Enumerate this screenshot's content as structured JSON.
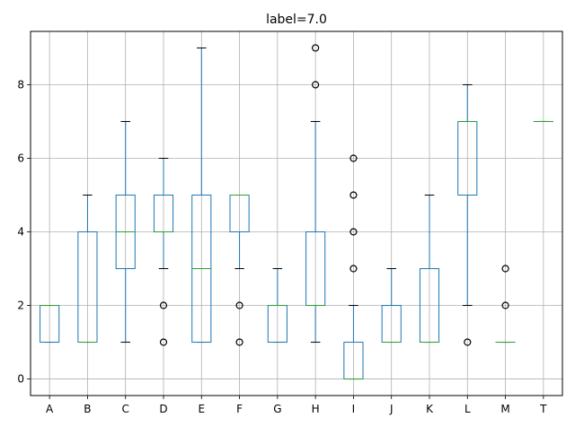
{
  "chart_data": {
    "type": "boxplot",
    "title": "label=7.0",
    "xlabel": "",
    "ylabel": "",
    "ylim": [
      -0.45,
      9.45
    ],
    "yticks": [
      0,
      2,
      4,
      6,
      8
    ],
    "grid": true,
    "colors": {
      "box": "#1f77b4",
      "median": "#2ca02c",
      "whisker": "#1f77b4",
      "cap": "#000000",
      "flier": "#000000",
      "grid": "#b0b0b0"
    },
    "categories": [
      "A",
      "B",
      "C",
      "D",
      "E",
      "F",
      "G",
      "H",
      "I",
      "J",
      "K",
      "L",
      "M",
      "T"
    ],
    "boxes": [
      {
        "name": "A",
        "whislo": 1,
        "q1": 1,
        "med": 2,
        "q3": 2,
        "whishi": 2,
        "fliers": []
      },
      {
        "name": "B",
        "whislo": 1,
        "q1": 1,
        "med": 1,
        "q3": 4,
        "whishi": 5,
        "fliers": []
      },
      {
        "name": "C",
        "whislo": 1,
        "q1": 3,
        "med": 4,
        "q3": 5,
        "whishi": 7,
        "fliers": []
      },
      {
        "name": "D",
        "whislo": 3,
        "q1": 4,
        "med": 4,
        "q3": 5,
        "whishi": 6,
        "fliers": [
          1,
          2
        ]
      },
      {
        "name": "E",
        "whislo": 1,
        "q1": 1,
        "med": 3,
        "q3": 5,
        "whishi": 9,
        "fliers": []
      },
      {
        "name": "F",
        "whislo": 3,
        "q1": 4,
        "med": 5,
        "q3": 5,
        "whishi": 5,
        "fliers": [
          1,
          2
        ]
      },
      {
        "name": "G",
        "whislo": 1,
        "q1": 1,
        "med": 2,
        "q3": 2,
        "whishi": 3,
        "fliers": []
      },
      {
        "name": "H",
        "whislo": 1,
        "q1": 2,
        "med": 2,
        "q3": 4,
        "whishi": 7,
        "fliers": [
          8,
          9
        ]
      },
      {
        "name": "I",
        "whislo": 0,
        "q1": 0,
        "med": 0,
        "q3": 1,
        "whishi": 2,
        "fliers": [
          3,
          4,
          5,
          6
        ]
      },
      {
        "name": "J",
        "whislo": 1,
        "q1": 1,
        "med": 1,
        "q3": 2,
        "whishi": 3,
        "fliers": []
      },
      {
        "name": "K",
        "whislo": 1,
        "q1": 1,
        "med": 1,
        "q3": 3,
        "whishi": 5,
        "fliers": []
      },
      {
        "name": "L",
        "whislo": 2,
        "q1": 5,
        "med": 7,
        "q3": 7,
        "whishi": 8,
        "fliers": [
          1
        ]
      },
      {
        "name": "M",
        "whislo": 1,
        "q1": 1,
        "med": 1,
        "q3": 1,
        "whishi": 1,
        "fliers": [
          2,
          3
        ]
      },
      {
        "name": "T",
        "whislo": 7,
        "q1": 7,
        "med": 7,
        "q3": 7,
        "whishi": 7,
        "fliers": []
      }
    ]
  }
}
